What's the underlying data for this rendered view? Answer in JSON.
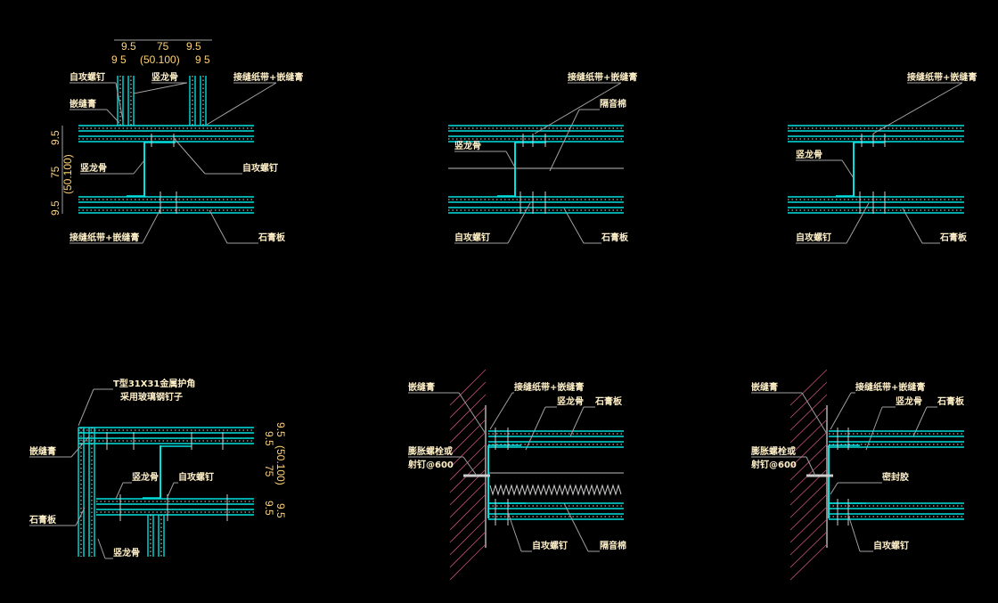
{
  "colors": {
    "background": "#000000",
    "board": "#00e0e0",
    "leader": "#a0a0a0",
    "label": "#fff0c8",
    "dimension": "#ffd27a",
    "wall_hatch": "#c0507a"
  },
  "labels": {
    "screw": "自攻螺钉",
    "stud": "竖龙骨",
    "joint_tape": "接缝纸带+嵌缝膏",
    "caulk": "嵌缝膏",
    "gypsum": "石膏板",
    "insulation": "隔音棉",
    "corner_1": "T型31X31金属护角",
    "corner_2": "采用玻璃钢钉子",
    "anchor_1": "膨胀螺栓或",
    "anchor_2": "射钉@600",
    "sealant": "密封胶"
  },
  "dimensions": {
    "board": "9.5",
    "board_split": "9 5",
    "stud": "75",
    "stud_range": "(50.100)"
  }
}
